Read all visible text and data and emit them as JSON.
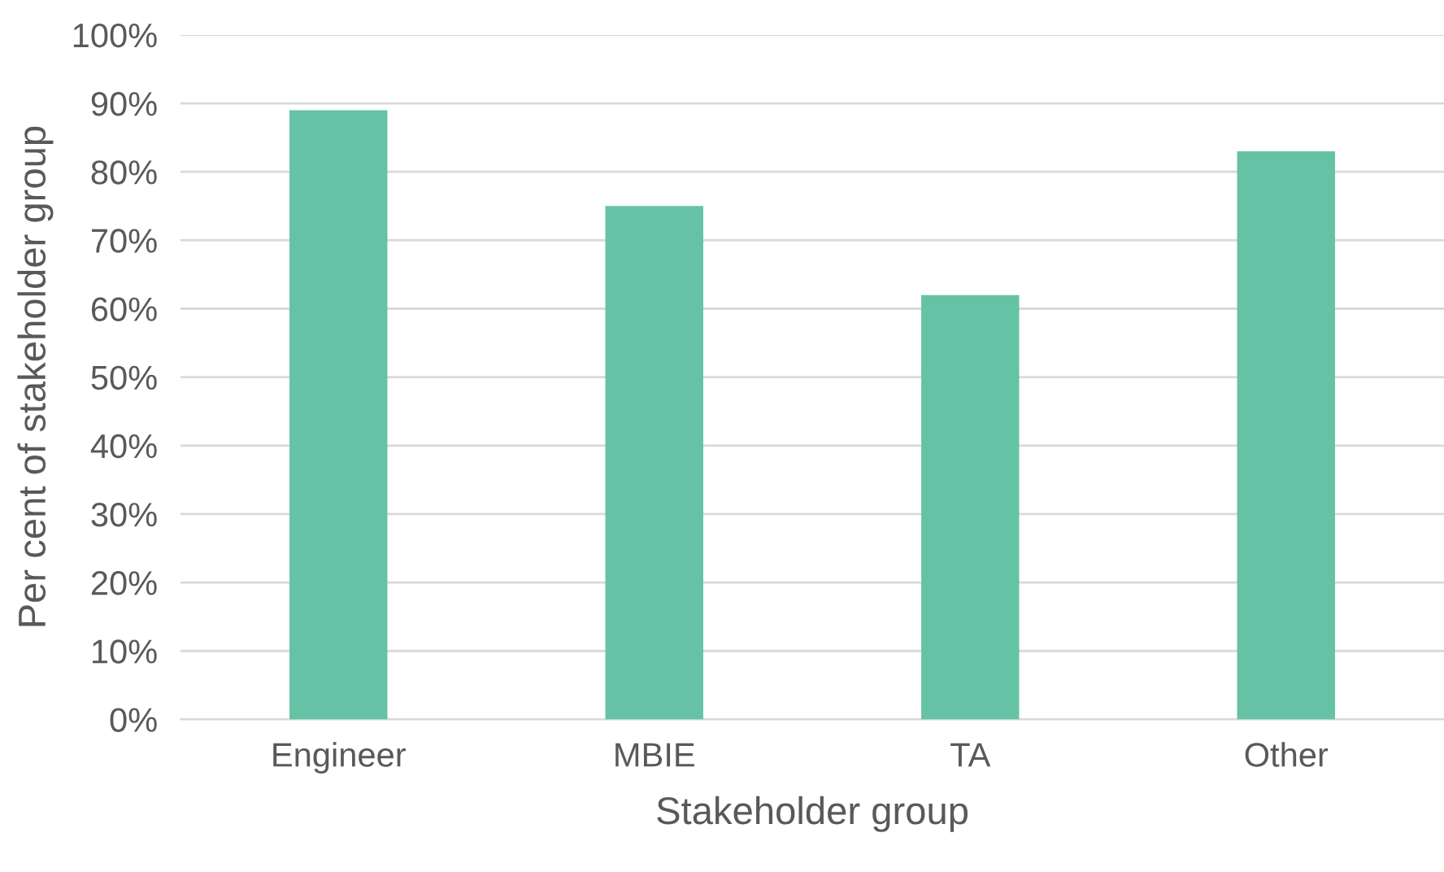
{
  "chart_data": {
    "type": "bar",
    "xlabel": "Stakeholder group",
    "ylabel": "Per cent of stakeholder group",
    "categories": [
      "Engineer",
      "MBIE",
      "TA",
      "Other"
    ],
    "values": [
      89,
      75,
      62,
      83
    ],
    "color": "#66c2a5",
    "ylim": [
      0,
      100
    ],
    "yticks": [
      {
        "value": 0,
        "label": "0%"
      },
      {
        "value": 10,
        "label": "10%"
      },
      {
        "value": 20,
        "label": "20%"
      },
      {
        "value": 30,
        "label": "30%"
      },
      {
        "value": 40,
        "label": "40%"
      },
      {
        "value": 50,
        "label": "50%"
      },
      {
        "value": 60,
        "label": "60%"
      },
      {
        "value": 70,
        "label": "70%"
      },
      {
        "value": 80,
        "label": "80%"
      },
      {
        "value": 90,
        "label": "90%"
      },
      {
        "value": 100,
        "label": "100%"
      }
    ],
    "grid": "y",
    "legend": false
  }
}
